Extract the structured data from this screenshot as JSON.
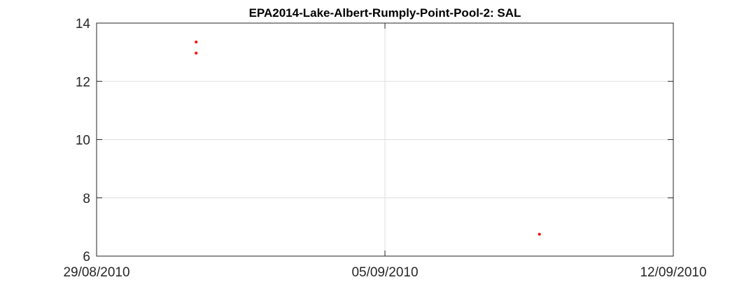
{
  "chart_data": {
    "type": "scatter",
    "title": "EPA2014-Lake-Albert-Rumply-Point-Pool-2: SAL",
    "xlabel": "",
    "ylabel": "",
    "x_axis_type": "date",
    "xlim": [
      "2010-08-29",
      "2010-09-12"
    ],
    "x_tick_values": [
      "2010-08-29",
      "2010-09-05",
      "2010-09-12"
    ],
    "x_tick_labels": [
      "29/08/2010",
      "05/09/2010",
      "12/09/2010"
    ],
    "ylim": [
      6,
      14
    ],
    "y_ticks": [
      6,
      8,
      10,
      12,
      14
    ],
    "grid": true,
    "marker_color": "#ff0000",
    "series": [
      {
        "points": [
          {
            "x": "2010-08-31 10:00",
            "y": 13.35
          },
          {
            "x": "2010-08-31 10:00",
            "y": 12.97
          },
          {
            "x": "2010-09-08 18:00",
            "y": 6.75
          }
        ]
      }
    ]
  }
}
